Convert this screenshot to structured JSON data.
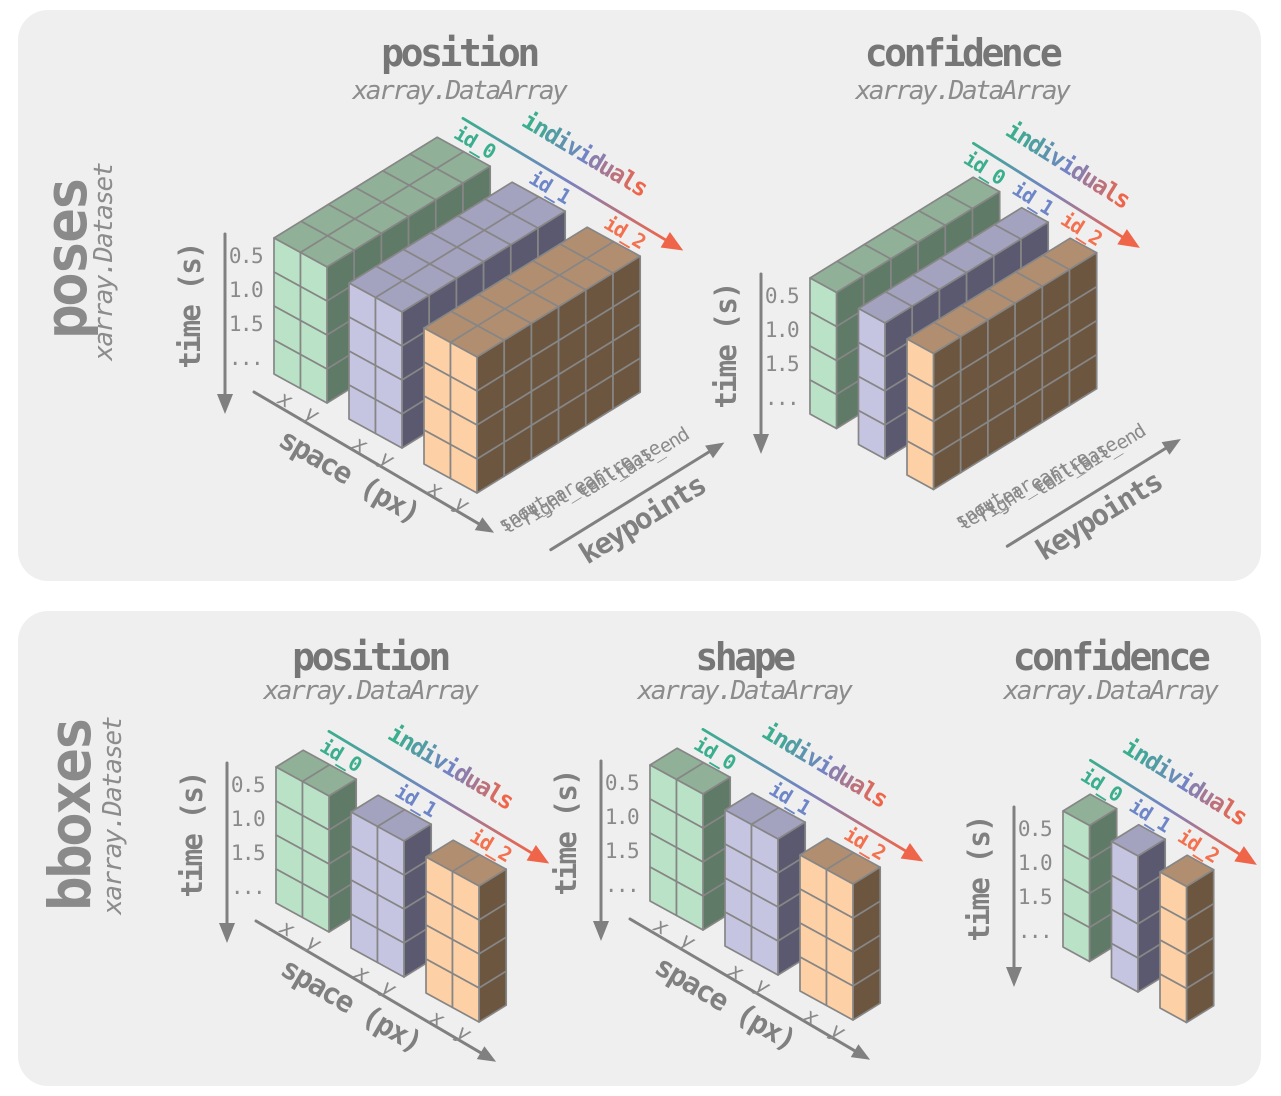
{
  "panels": [
    {
      "name": "poses",
      "type_label": "xarray.Dataset",
      "arrays": [
        {
          "title": "position",
          "subtitle": "xarray.DataArray",
          "dims": {
            "time": 4,
            "space": 2,
            "keypoints": 6,
            "individuals": 3
          }
        },
        {
          "title": "confidence",
          "subtitle": "xarray.DataArray",
          "dims": {
            "time": 4,
            "keypoints": 6,
            "individuals": 3
          }
        }
      ]
    },
    {
      "name": "bboxes",
      "type_label": "xarray.Dataset",
      "arrays": [
        {
          "title": "position",
          "subtitle": "xarray.DataArray",
          "dims": {
            "time": 4,
            "space": 2,
            "individuals": 3
          }
        },
        {
          "title": "shape",
          "subtitle": "xarray.DataArray",
          "dims": {
            "time": 4,
            "space": 2,
            "individuals": 3
          }
        },
        {
          "title": "confidence",
          "subtitle": "xarray.DataArray",
          "dims": {
            "time": 4,
            "individuals": 3
          }
        }
      ]
    }
  ],
  "axes": {
    "time": {
      "label": "time (s)",
      "ticks": [
        "0.5",
        "1.0",
        "1.5",
        "..."
      ]
    },
    "space": {
      "label": "space (px)",
      "ticks": [
        "x",
        "y"
      ]
    },
    "keypoints": {
      "label": "keypoints",
      "ticks": [
        "snout",
        "left_ear",
        "right_ear",
        "centre",
        "tail_base",
        "tail_end"
      ]
    },
    "individuals": {
      "label": "individuals",
      "ticks": [
        "id_0",
        "id_1",
        "id_2"
      ]
    }
  },
  "colors": {
    "page_bg": "#ffffff",
    "panel_bg": "#efefef",
    "title_gray": "#767676",
    "subtitle_gray": "#8c8c8c",
    "text_gray": "#8a8a8a",
    "axis_gray": "#808080",
    "stroke": "#868686",
    "individuals_gradient": [
      "#3aae8d",
      "#7383c3",
      "#ef6549"
    ],
    "faces": {
      "id_0": {
        "front": "#bae2c7",
        "top": "#90b097",
        "side": "#5f7a66",
        "label": "#3aae8d"
      },
      "id_1": {
        "front": "#c6c5e1",
        "top": "#a3a2bf",
        "side": "#5b5970",
        "label": "#6d86c8"
      },
      "id_2": {
        "front": "#fdd0a5",
        "top": "#b28e70",
        "side": "#6c563f",
        "label": "#f3714e"
      }
    }
  }
}
